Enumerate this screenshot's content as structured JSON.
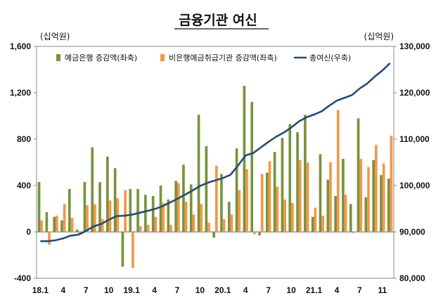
{
  "chart_data": {
    "type": "bar",
    "title": "금융기관 여신",
    "left_unit": "(십억원)",
    "right_unit": "(십억원)",
    "left_ylim": [
      -400,
      1600
    ],
    "left_ticks": [
      -400,
      0,
      400,
      800,
      1200,
      1600
    ],
    "left_tick_labels": [
      "-400",
      "0",
      "400",
      "800",
      "1,200",
      "1,600"
    ],
    "right_ylim": [
      80000,
      130000
    ],
    "right_ticks": [
      80000,
      90000,
      100000,
      110000,
      120000,
      130000
    ],
    "right_tick_labels": [
      "80,000",
      "90,000",
      "100,000",
      "110,000",
      "120,000",
      "130,000"
    ],
    "x_tick_labels": [
      {
        "index": 0,
        "label": "18.1"
      },
      {
        "index": 3,
        "label": "4"
      },
      {
        "index": 6,
        "label": "7"
      },
      {
        "index": 9,
        "label": "10"
      },
      {
        "index": 12,
        "label": "19.1"
      },
      {
        "index": 15,
        "label": "4"
      },
      {
        "index": 18,
        "label": "7"
      },
      {
        "index": 21,
        "label": "10"
      },
      {
        "index": 24,
        "label": "20.1"
      },
      {
        "index": 27,
        "label": "4"
      },
      {
        "index": 30,
        "label": "7"
      },
      {
        "index": 33,
        "label": "10"
      },
      {
        "index": 36,
        "label": "21.1"
      },
      {
        "index": 39,
        "label": "4"
      },
      {
        "index": 42,
        "label": "7"
      },
      {
        "index": 45,
        "label": "11"
      }
    ],
    "categories": [
      "2018-01",
      "2018-02",
      "2018-03",
      "2018-04",
      "2018-05",
      "2018-06",
      "2018-07",
      "2018-08",
      "2018-09",
      "2018-10",
      "2018-11",
      "2018-12",
      "2019-01",
      "2019-02",
      "2019-03",
      "2019-04",
      "2019-05",
      "2019-06",
      "2019-07",
      "2019-08",
      "2019-09",
      "2019-10",
      "2019-11",
      "2019-12",
      "2020-01",
      "2020-02",
      "2020-03",
      "2020-04",
      "2020-05",
      "2020-06",
      "2020-07",
      "2020-08",
      "2020-09",
      "2020-10",
      "2020-11",
      "2020-12",
      "2021-01",
      "2021-02",
      "2021-03",
      "2021-04",
      "2021-05",
      "2021-06",
      "2021-07",
      "2021-08",
      "2021-09",
      "2021-10",
      "2021-11"
    ],
    "series": [
      {
        "name": "예금은행 증감액(좌축)",
        "axis": "left",
        "kind": "bar",
        "color": "#77933c",
        "values": [
          430,
          170,
          130,
          100,
          370,
          20,
          430,
          730,
          430,
          650,
          550,
          -300,
          370,
          370,
          320,
          310,
          400,
          280,
          440,
          580,
          410,
          1010,
          740,
          -50,
          500,
          260,
          720,
          1260,
          1120,
          -30,
          510,
          690,
          810,
          930,
          860,
          1010,
          130,
          670,
          450,
          310,
          630,
          240,
          980,
          300,
          620,
          490,
          460
        ]
      },
      {
        "name": "비은행예금취급기관 증감액(좌축)",
        "axis": "left",
        "kind": "bar",
        "color": "#f79646",
        "values": [
          100,
          -110,
          140,
          240,
          120,
          -20,
          230,
          240,
          110,
          270,
          290,
          360,
          -310,
          50,
          60,
          130,
          250,
          60,
          420,
          260,
          150,
          240,
          80,
          570,
          110,
          150,
          360,
          540,
          -20,
          500,
          610,
          390,
          280,
          250,
          620,
          600,
          210,
          140,
          600,
          1050,
          320,
          -10,
          630,
          560,
          750,
          590,
          830
        ]
      },
      {
        "name": "총여신(우축)",
        "axis": "right",
        "kind": "line",
        "color": "#1f4e79",
        "values": [
          88000,
          88000,
          88200,
          88600,
          89200,
          89400,
          90200,
          91200,
          91700,
          92600,
          93400,
          93500,
          93700,
          94100,
          94500,
          94900,
          95500,
          96300,
          97100,
          98000,
          98900,
          99900,
          100600,
          101100,
          101600,
          102300,
          104300,
          106500,
          107000,
          108200,
          109400,
          110500,
          111400,
          112500,
          113800,
          114700,
          115300,
          116000,
          117200,
          118300,
          118900,
          119500,
          120900,
          122000,
          123500,
          124800,
          126400
        ]
      }
    ]
  }
}
